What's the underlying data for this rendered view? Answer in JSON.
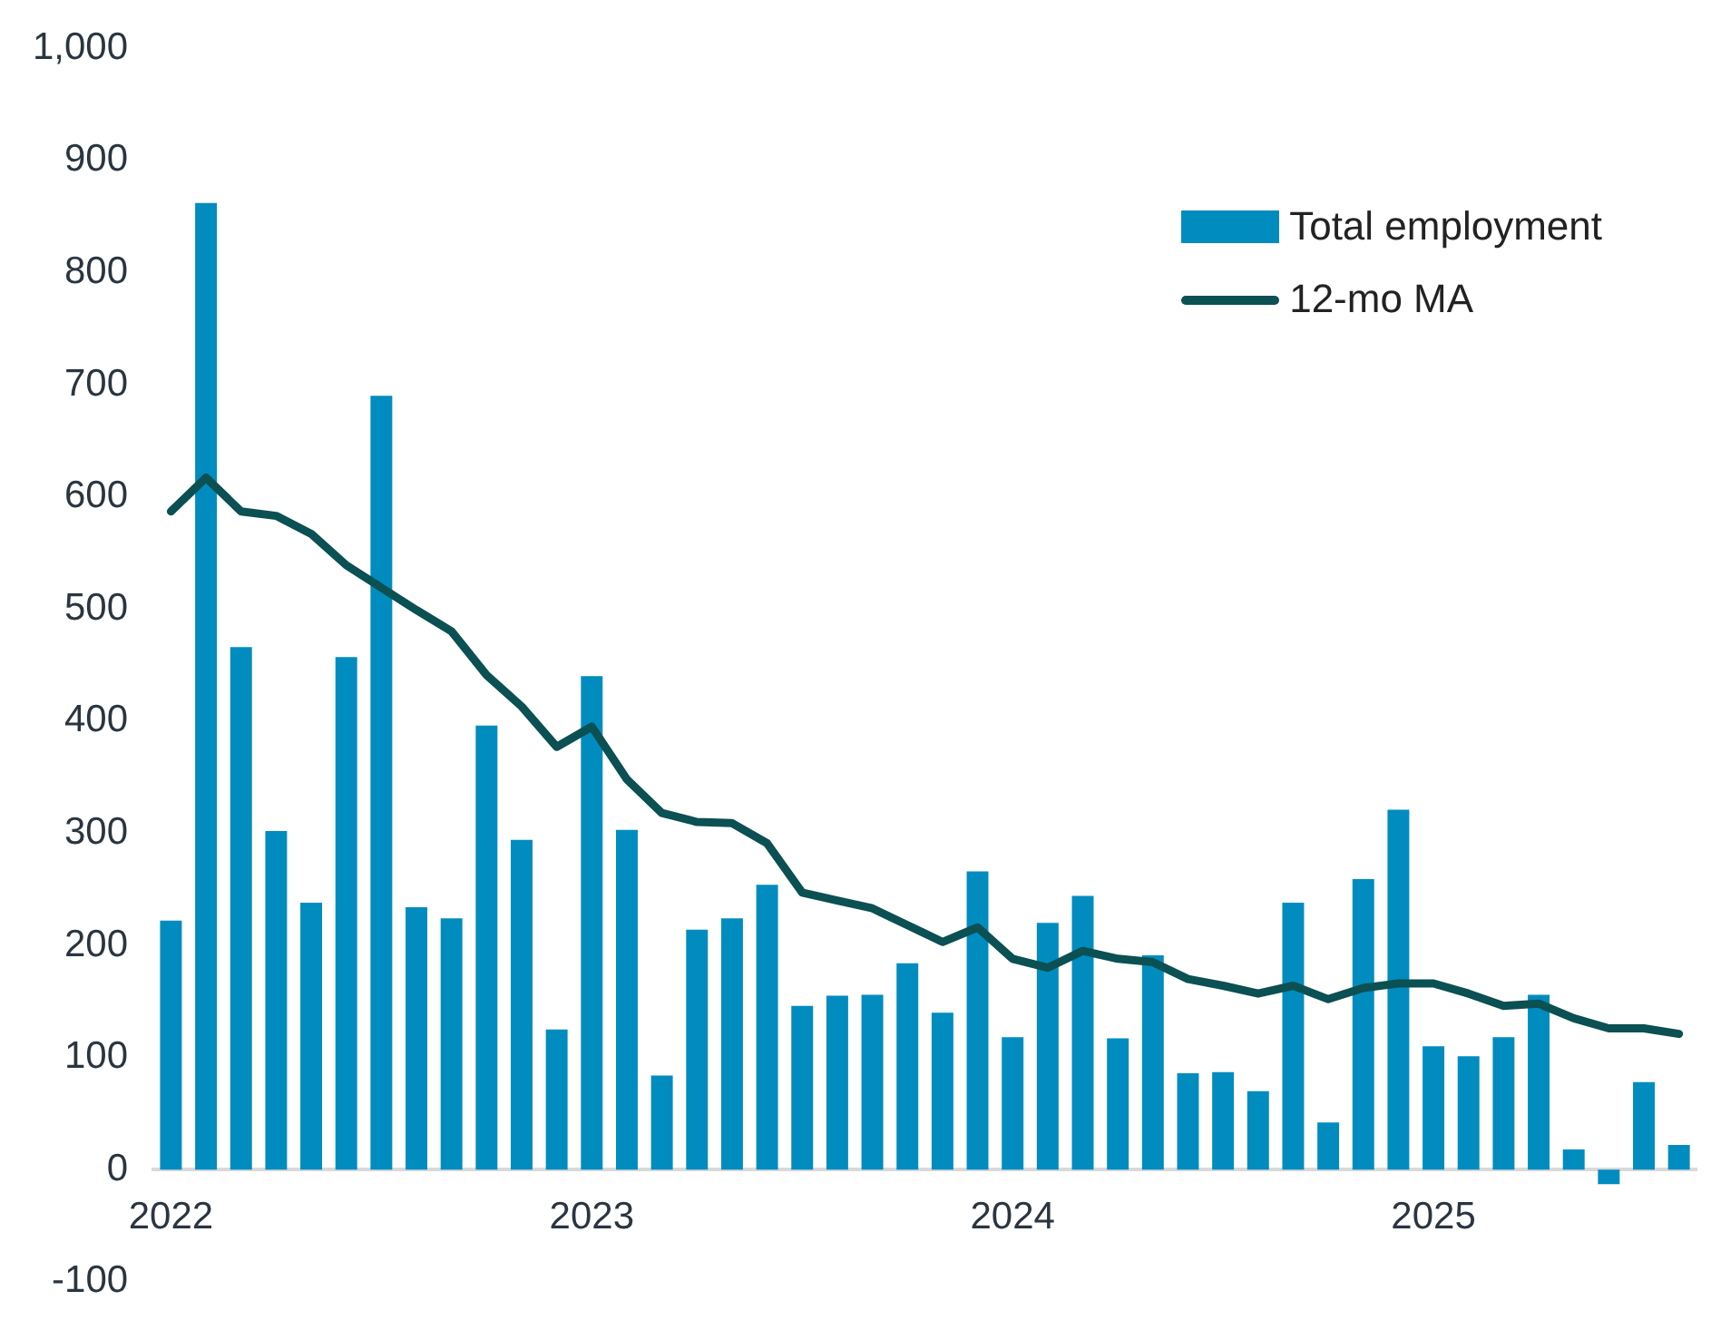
{
  "chart_data": {
    "type": "bar",
    "categories": [
      "2022",
      null,
      null,
      null,
      null,
      null,
      null,
      null,
      null,
      null,
      null,
      null,
      "2023",
      null,
      null,
      null,
      null,
      null,
      null,
      null,
      null,
      null,
      null,
      null,
      "2024",
      null,
      null,
      null,
      null,
      null,
      null,
      null,
      null,
      null,
      null,
      null,
      "2025",
      null,
      null,
      null,
      null,
      null,
      null,
      null
    ],
    "series": [
      {
        "name": "Total employment",
        "color": "#008cbf",
        "values": [
          222,
          862,
          466,
          302,
          238,
          457,
          690,
          234,
          224,
          396,
          294,
          125,
          440,
          303,
          84,
          214,
          224,
          254,
          146,
          155,
          156,
          184,
          140,
          266,
          118,
          220,
          244,
          117,
          191,
          86,
          87,
          70,
          238,
          42,
          259,
          321,
          110,
          101,
          118,
          156,
          18,
          -13,
          78,
          22
        ]
      },
      {
        "name": "12-mo MA",
        "type": "line",
        "color": "#0b5052",
        "values": [
          587,
          617,
          587,
          583,
          567,
          539,
          519,
          499,
          480,
          441,
          413,
          377,
          395,
          348,
          318,
          310,
          309,
          291,
          247,
          240,
          233,
          218,
          203,
          216,
          188,
          180,
          195,
          188,
          185,
          170,
          164,
          157,
          164,
          152,
          162,
          166,
          166,
          157,
          146,
          148,
          135,
          126,
          126,
          121
        ]
      }
    ],
    "ylim": [
      -100,
      1000
    ],
    "yticks": [
      {
        "value": 1000,
        "label": "1,000"
      },
      900,
      800,
      700,
      600,
      500,
      400,
      300,
      200,
      100,
      0,
      -100
    ],
    "grid": false,
    "legend": "top right",
    "marker": "none",
    "line_style": "solid"
  }
}
